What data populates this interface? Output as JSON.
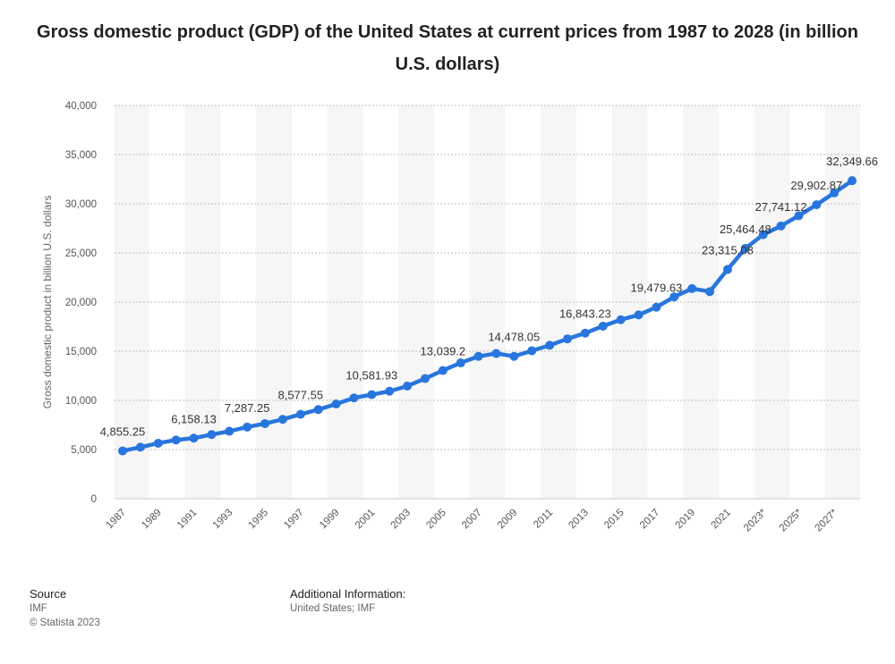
{
  "title": "Gross domestic product (GDP) of the United States at current prices from 1987 to 2028 (in billion U.S. dollars)",
  "footer": {
    "source_heading": "Source",
    "source_lines": [
      "IMF",
      "© Statista 2023"
    ],
    "info_heading": "Additional Information:",
    "info_text": "United States; IMF"
  },
  "chart_data": {
    "type": "line",
    "ylabel": "Gross domestic product in billion U.S. dollars",
    "xlabel": "",
    "ylim": [
      0,
      40000
    ],
    "yticks": [
      0,
      5000,
      10000,
      15000,
      20000,
      25000,
      30000,
      35000,
      40000
    ],
    "ytick_labels": [
      "0",
      "5,000",
      "10,000",
      "15,000",
      "20,000",
      "25,000",
      "30,000",
      "35,000",
      "40,000"
    ],
    "grid": true,
    "line_color": "#2876dd",
    "categories": [
      "1987",
      "1988",
      "1989",
      "1990",
      "1991",
      "1992",
      "1993",
      "1994",
      "1995",
      "1996",
      "1997",
      "1998",
      "1999",
      "2000",
      "2001",
      "2002",
      "2003",
      "2004",
      "2005",
      "2006",
      "2007",
      "2008",
      "2009",
      "2010",
      "2011",
      "2012",
      "2013",
      "2014",
      "2015",
      "2016",
      "2017",
      "2018",
      "2019",
      "2020",
      "2021",
      "2022",
      "2023*",
      "2024*",
      "2025*",
      "2026*",
      "2027*",
      "2028*"
    ],
    "xtick_labels_shown": [
      "1987",
      "1989",
      "1991",
      "1993",
      "1995",
      "1997",
      "1999",
      "2001",
      "2003",
      "2005",
      "2007",
      "2009",
      "2011",
      "2013",
      "2015",
      "2017",
      "2019",
      "2021",
      "2023*",
      "2025*",
      "2027*"
    ],
    "values": [
      4855.25,
      5236.4,
      5641.6,
      5963.1,
      6158.13,
      6520.3,
      6858.6,
      7287.25,
      7639.7,
      8073.1,
      8577.55,
      9062.8,
      9631.2,
      10250.9,
      10581.93,
      10929.1,
      11456.4,
      12217.2,
      13039.2,
      13815.6,
      14474.2,
      14769.9,
      14478.05,
      15049.0,
      15599.7,
      16253.9,
      16843.23,
      17550.7,
      18206.0,
      18695.1,
      19479.63,
      20527.2,
      21372.6,
      21060.5,
      23315.08,
      25464.48,
      26854.6,
      27741.12,
      28782.1,
      29902.87,
      31117.7,
      32349.66
    ],
    "data_labels": [
      {
        "index": 0,
        "text": "4,855.25"
      },
      {
        "index": 4,
        "text": "6,158.13"
      },
      {
        "index": 7,
        "text": "7,287.25"
      },
      {
        "index": 10,
        "text": "8,577.55"
      },
      {
        "index": 14,
        "text": "10,581.93"
      },
      {
        "index": 18,
        "text": "13,039.2"
      },
      {
        "index": 22,
        "text": "14,478.05"
      },
      {
        "index": 26,
        "text": "16,843.23"
      },
      {
        "index": 30,
        "text": "19,479.63"
      },
      {
        "index": 34,
        "text": "23,315.08"
      },
      {
        "index": 35,
        "text": "25,464.48"
      },
      {
        "index": 37,
        "text": "27,741.12"
      },
      {
        "index": 39,
        "text": "29,902.87"
      },
      {
        "index": 41,
        "text": "32,349.66"
      }
    ]
  }
}
